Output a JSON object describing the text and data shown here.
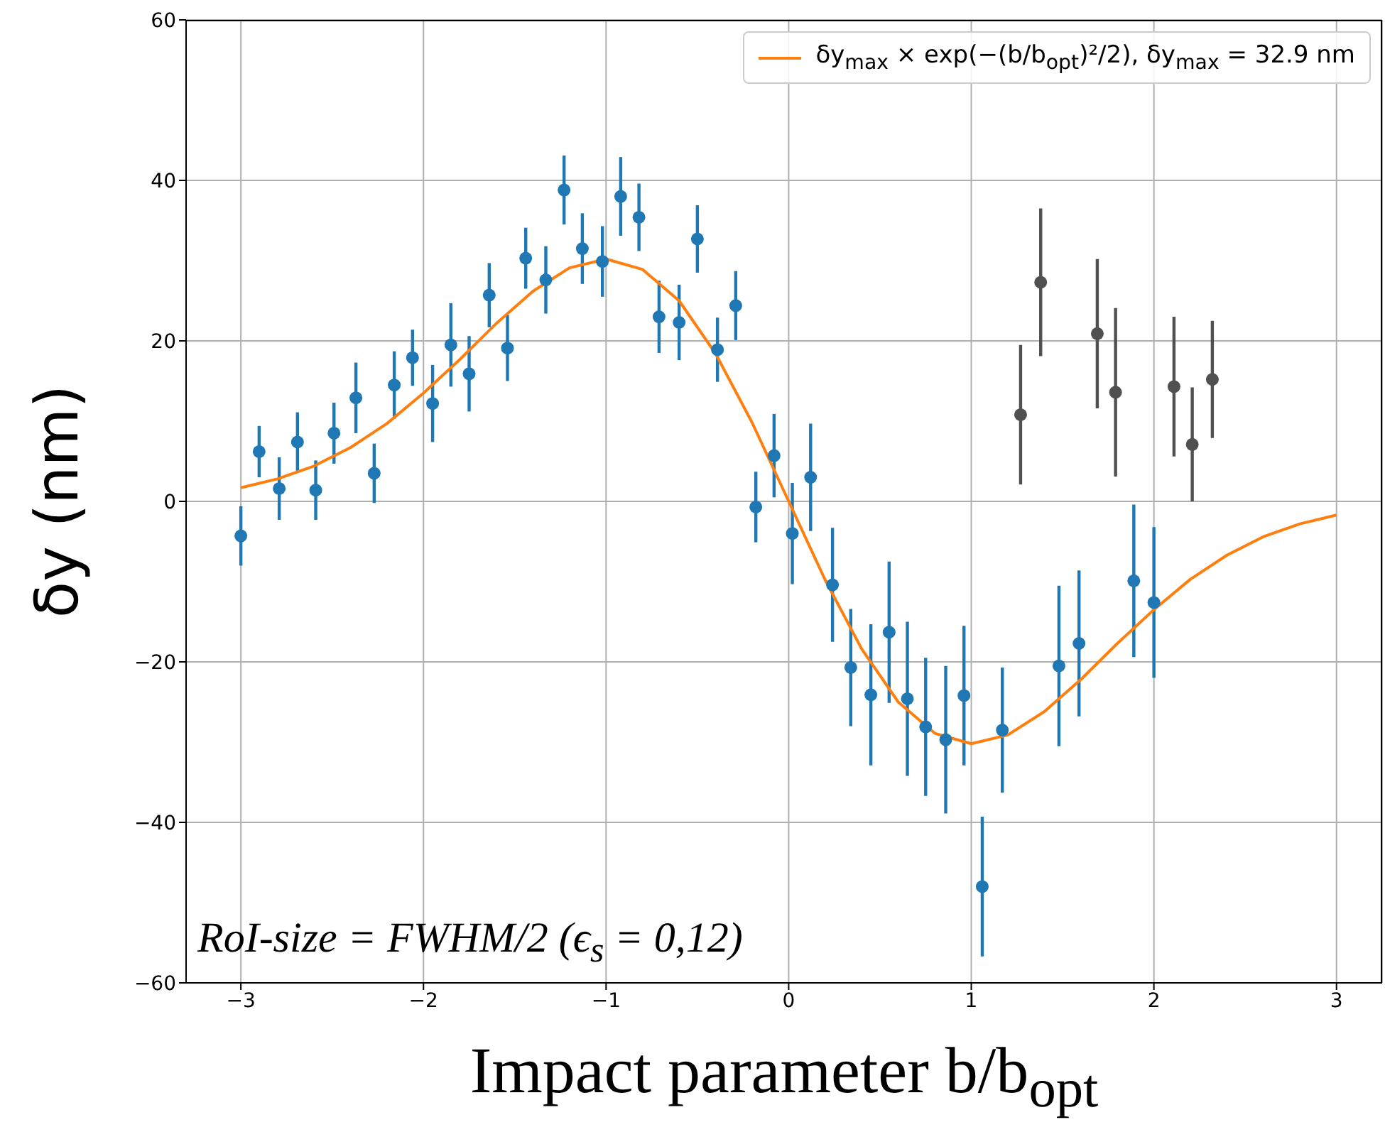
{
  "chart_data": {
    "type": "scatter",
    "xlabel": "Impact parameter b/b$_{opt}$",
    "ylabel": "δy (nm)",
    "annotations": [
      "RoI-size = FWHM/2 (ϵ$_{s}$ = 0,12)"
    ],
    "xlim": [
      -3.3,
      3.25
    ],
    "ylim": [
      -60,
      60
    ],
    "xticks": [
      -3,
      -2,
      -1,
      0,
      1,
      2,
      3
    ],
    "yticks": [
      -60,
      -40,
      -20,
      0,
      20,
      40,
      60
    ],
    "grid": true,
    "legend": "top right",
    "series": [
      {
        "marker": "circle",
        "color": "#1f77b4",
        "x": [
          -3.0,
          -2.9,
          -2.79,
          -2.69,
          -2.59,
          -2.49,
          -2.37,
          -2.27,
          -2.16,
          -2.06,
          -1.95,
          -1.85,
          -1.75,
          -1.64,
          -1.54,
          -1.44,
          -1.33,
          -1.23,
          -1.13,
          -1.02,
          -0.92,
          -0.82,
          -0.71,
          -0.6,
          -0.5,
          -0.39,
          -0.29,
          -0.18,
          -0.08,
          0.02,
          0.12,
          0.24,
          0.34,
          0.45,
          0.55,
          0.65,
          0.75,
          0.86,
          0.96,
          1.06,
          1.17,
          1.48,
          1.59,
          1.89,
          2.0
        ],
        "values": [
          -4.3,
          6.2,
          1.6,
          7.4,
          1.4,
          8.5,
          12.9,
          3.5,
          14.5,
          17.9,
          12.2,
          19.5,
          15.9,
          25.7,
          19.1,
          30.3,
          27.6,
          38.8,
          31.5,
          29.9,
          38.0,
          35.4,
          23.0,
          22.3,
          32.7,
          18.9,
          24.4,
          -0.7,
          5.7,
          -4.0,
          3.0,
          -10.4,
          -20.7,
          -24.1,
          -16.3,
          -24.6,
          -28.1,
          -29.7,
          -24.2,
          -48.0,
          -28.5,
          -20.5,
          -17.7,
          -9.9,
          -12.6
        ],
        "errors": [
          3.7,
          3.2,
          3.9,
          3.7,
          3.7,
          3.8,
          4.4,
          3.7,
          4.2,
          3.5,
          4.8,
          5.2,
          4.7,
          4.0,
          4.1,
          3.8,
          4.2,
          4.3,
          4.4,
          4.4,
          4.9,
          4.2,
          4.5,
          4.7,
          4.2,
          4.0,
          4.3,
          4.4,
          5.2,
          6.3,
          6.7,
          7.1,
          7.3,
          8.8,
          8.8,
          9.6,
          8.6,
          9.2,
          8.7,
          8.7,
          7.8,
          10.0,
          9.1,
          9.5,
          9.4
        ]
      },
      {
        "marker": "circle",
        "color": "#505050",
        "x": [
          1.27,
          1.38,
          1.69,
          1.79,
          2.11,
          2.21,
          2.32
        ],
        "values": [
          10.8,
          27.3,
          20.9,
          13.6,
          14.3,
          7.1,
          15.2
        ],
        "errors": [
          8.7,
          9.2,
          9.3,
          10.5,
          8.7,
          7.1,
          7.3
        ]
      },
      {
        "type": "line",
        "marker": "none",
        "name": "δy$_{max}$ × exp(−(b/b$_{opt}$)²/2), δy$_{max}$ = 32.9 nm",
        "color": "#ff7f0e",
        "x": [
          -3,
          -2.8,
          -2.6,
          -2.4,
          -2.2,
          -2,
          -1.8,
          -1.6,
          -1.4,
          -1.2,
          -1,
          -0.8,
          -0.6,
          -0.4,
          -0.2,
          0,
          0.2,
          0.4,
          0.6,
          0.8,
          1,
          1.2,
          1.4,
          1.6,
          1.8,
          2,
          2.2,
          2.4,
          2.6,
          2.8,
          3
        ],
        "values": [
          1.7,
          2.8,
          4.4,
          6.7,
          9.7,
          13.5,
          17.7,
          22.2,
          26.2,
          29.1,
          30.2,
          28.9,
          25.0,
          18.4,
          9.8,
          0,
          -9.8,
          -18.4,
          -25.0,
          -28.9,
          -30.2,
          -29.1,
          -26.2,
          -22.2,
          -17.7,
          -13.5,
          -9.7,
          -6.7,
          -4.4,
          -2.8,
          -1.7
        ]
      }
    ]
  }
}
